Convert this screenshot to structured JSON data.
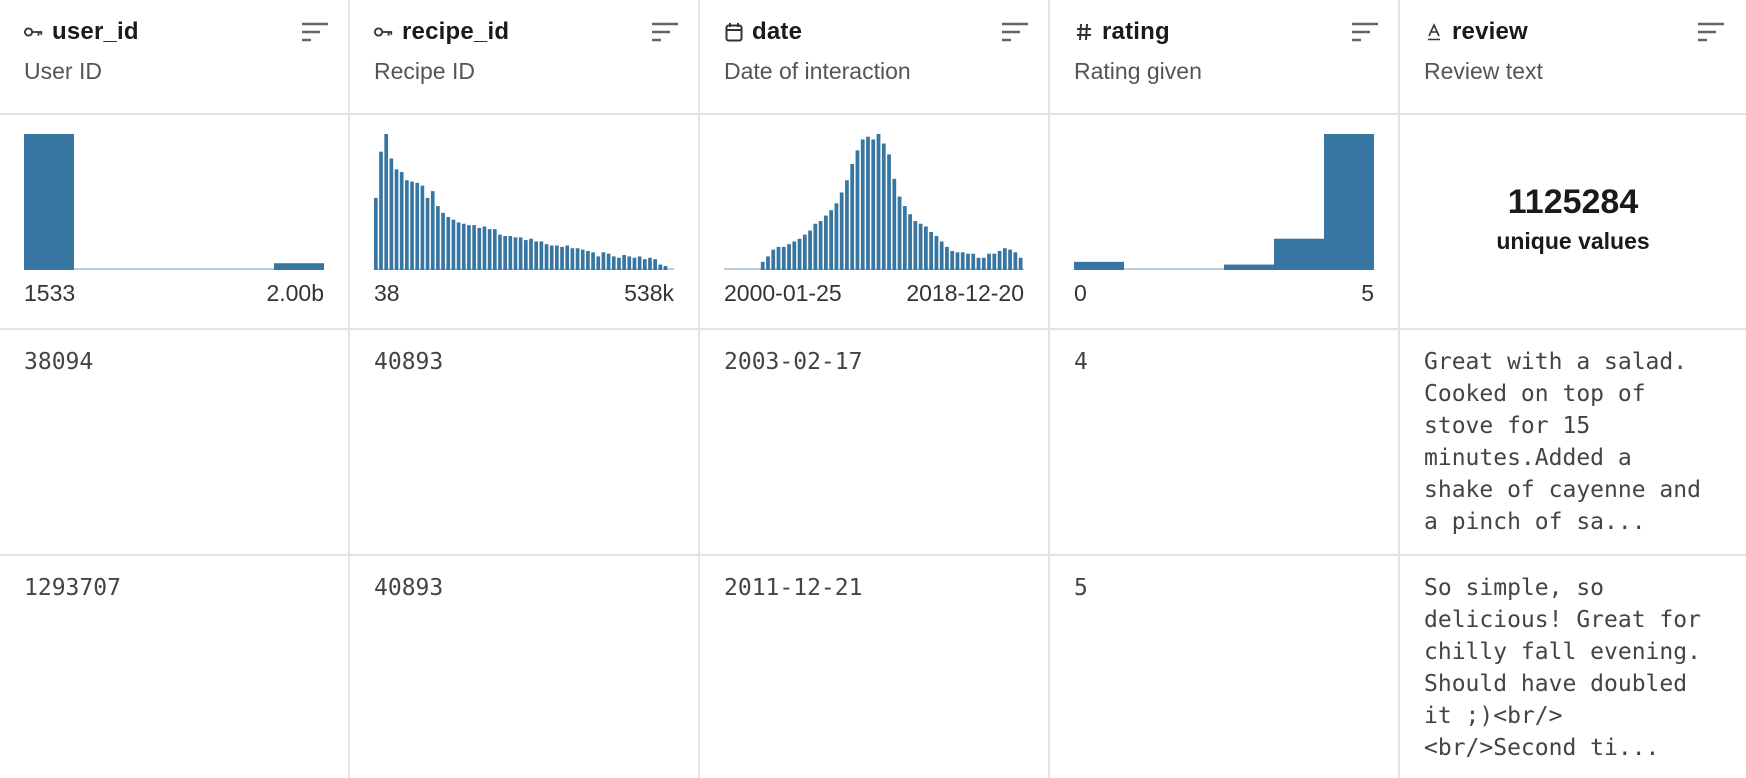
{
  "columns": [
    {
      "name": "user_id",
      "type_icon": "key-icon",
      "description": "User ID",
      "range_min": "1533",
      "range_max": "2.00b",
      "histogram": [
        1.0,
        0.0,
        0.0,
        0.0,
        0.01,
        0.05
      ]
    },
    {
      "name": "recipe_id",
      "type_icon": "key-icon",
      "description": "Recipe ID",
      "range_min": "38",
      "range_max": "538k",
      "histogram": [
        0.53,
        0.87,
        1.0,
        0.82,
        0.74,
        0.72,
        0.66,
        0.65,
        0.64,
        0.62,
        0.53,
        0.58,
        0.47,
        0.42,
        0.39,
        0.37,
        0.35,
        0.34,
        0.33,
        0.33,
        0.31,
        0.32,
        0.3,
        0.3,
        0.26,
        0.25,
        0.25,
        0.24,
        0.24,
        0.22,
        0.23,
        0.21,
        0.21,
        0.19,
        0.18,
        0.18,
        0.17,
        0.18,
        0.16,
        0.16,
        0.15,
        0.14,
        0.13,
        0.1,
        0.13,
        0.12,
        0.1,
        0.09,
        0.11,
        0.1,
        0.09,
        0.1,
        0.08,
        0.09,
        0.08,
        0.04,
        0.03,
        0.01
      ]
    },
    {
      "name": "date",
      "type_icon": "calendar-icon",
      "description": "Date of interaction",
      "range_min": "2000-01-25",
      "range_max": "2018-12-20",
      "histogram": [
        0.0,
        0.0,
        0.0,
        0.0,
        0.0,
        0.0,
        0.01,
        0.06,
        0.1,
        0.15,
        0.17,
        0.17,
        0.19,
        0.21,
        0.23,
        0.26,
        0.29,
        0.34,
        0.36,
        0.4,
        0.44,
        0.49,
        0.57,
        0.66,
        0.78,
        0.88,
        0.96,
        0.98,
        0.96,
        1.0,
        0.93,
        0.85,
        0.67,
        0.54,
        0.47,
        0.41,
        0.36,
        0.34,
        0.32,
        0.28,
        0.25,
        0.21,
        0.17,
        0.14,
        0.13,
        0.13,
        0.12,
        0.12,
        0.09,
        0.09,
        0.12,
        0.12,
        0.14,
        0.16,
        0.15,
        0.13,
        0.09
      ]
    },
    {
      "name": "rating",
      "type_icon": "hash-icon",
      "description": "Rating given",
      "range_min": "0",
      "range_max": "5",
      "histogram": [
        0.06,
        0.01,
        0.01,
        0.04,
        0.23,
        1.0
      ]
    },
    {
      "name": "review",
      "type_icon": "text-icon",
      "description": "Review text",
      "unique_count": "1125284",
      "unique_label": "unique values"
    }
  ],
  "rows": [
    {
      "user_id": "38094",
      "recipe_id": "40893",
      "date": "2003-02-17",
      "rating": "4",
      "review": "Great with a salad.\nCooked on top of\nstove for 15\nminutes.Added a\nshake of cayenne and\na pinch of sa..."
    },
    {
      "user_id": "1293707",
      "recipe_id": "40893",
      "date": "2011-12-21",
      "rating": "5",
      "review": "So simple, so\ndelicious! Great for\nchilly fall evening.\nShould have doubled\nit ;)<br/>\n<br/>Second ti..."
    }
  ],
  "colors": {
    "bar": "#3776a2",
    "bar_faint": "#bcd0de",
    "border": "#e3e3e3"
  }
}
